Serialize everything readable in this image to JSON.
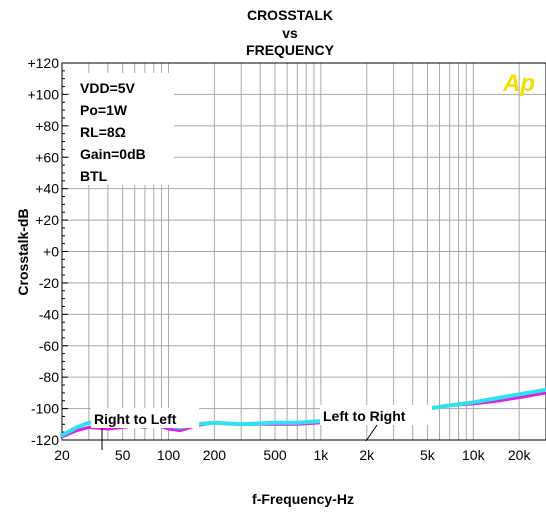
{
  "title_lines": [
    "CROSSTALK",
    "vs",
    "FREQUENCY"
  ],
  "logo_text": "Ap",
  "conditions": [
    "VDD=5V",
    "Po=1W",
    "RL=8Ω",
    "Gain=0dB",
    "BTL"
  ],
  "annotations": {
    "right_to_left": "Right to Left",
    "left_to_right": "Left to Right"
  },
  "colors": {
    "background": "#ffffff",
    "grid": "#a8a8a8",
    "right_to_left": "#e020e0",
    "left_to_right": "#30e0f0",
    "logo": "#f4dd00"
  },
  "chart_data": {
    "type": "line",
    "title": "CROSSTALK vs FREQUENCY",
    "xlabel": "f-Frequency-Hz",
    "ylabel": "Crosstalk-dB",
    "xscale": "log",
    "xlim": [
      20,
      30000
    ],
    "ylim": [
      -120,
      120
    ],
    "grid": true,
    "x_ticks": [
      {
        "value": 20,
        "label": "20"
      },
      {
        "value": 50,
        "label": "50"
      },
      {
        "value": 100,
        "label": "100"
      },
      {
        "value": 200,
        "label": "200"
      },
      {
        "value": 500,
        "label": "500"
      },
      {
        "value": 1000,
        "label": "1k"
      },
      {
        "value": 2000,
        "label": "2k"
      },
      {
        "value": 5000,
        "label": "5k"
      },
      {
        "value": 10000,
        "label": "10k"
      },
      {
        "value": 20000,
        "label": "20k"
      }
    ],
    "y_ticks": [
      {
        "value": 120,
        "label": "+120"
      },
      {
        "value": 100,
        "label": "+100"
      },
      {
        "value": 80,
        "label": "+80"
      },
      {
        "value": 60,
        "label": "+60"
      },
      {
        "value": 40,
        "label": "+40"
      },
      {
        "value": 20,
        "label": "+20"
      },
      {
        "value": 0,
        "label": "+0"
      },
      {
        "value": -20,
        "label": "-20"
      },
      {
        "value": -40,
        "label": "-40"
      },
      {
        "value": -60,
        "label": "-60"
      },
      {
        "value": -80,
        "label": "-80"
      },
      {
        "value": -100,
        "label": "-100"
      },
      {
        "value": -120,
        "label": "-120"
      }
    ],
    "series": [
      {
        "name": "Right to Left",
        "color": "#e020e0",
        "points": [
          [
            20,
            -118
          ],
          [
            25,
            -114
          ],
          [
            30,
            -112
          ],
          [
            40,
            -113
          ],
          [
            50,
            -112
          ],
          [
            60,
            -111
          ],
          [
            70,
            -112
          ],
          [
            80,
            -110
          ],
          [
            100,
            -113
          ],
          [
            120,
            -114
          ],
          [
            150,
            -111
          ],
          [
            200,
            -109
          ],
          [
            300,
            -110
          ],
          [
            500,
            -110
          ],
          [
            700,
            -110
          ],
          [
            1000,
            -109
          ],
          [
            1500,
            -108
          ],
          [
            2000,
            -106
          ],
          [
            3000,
            -104
          ],
          [
            5000,
            -100
          ],
          [
            7000,
            -98
          ],
          [
            10000,
            -97
          ],
          [
            15000,
            -95
          ],
          [
            20000,
            -93
          ],
          [
            30000,
            -90
          ]
        ]
      },
      {
        "name": "Left to Right",
        "color": "#30e0f0",
        "points": [
          [
            20,
            -117
          ],
          [
            25,
            -112
          ],
          [
            30,
            -109
          ],
          [
            40,
            -110
          ],
          [
            50,
            -110
          ],
          [
            60,
            -110
          ],
          [
            70,
            -110
          ],
          [
            80,
            -109
          ],
          [
            100,
            -111
          ],
          [
            120,
            -112
          ],
          [
            150,
            -110
          ],
          [
            200,
            -109
          ],
          [
            300,
            -110
          ],
          [
            500,
            -109
          ],
          [
            700,
            -109
          ],
          [
            1000,
            -108
          ],
          [
            1500,
            -107
          ],
          [
            2000,
            -106
          ],
          [
            3000,
            -103
          ],
          [
            5000,
            -100
          ],
          [
            7000,
            -98
          ],
          [
            10000,
            -96
          ],
          [
            15000,
            -93
          ],
          [
            20000,
            -91
          ],
          [
            30000,
            -88
          ]
        ]
      }
    ]
  }
}
